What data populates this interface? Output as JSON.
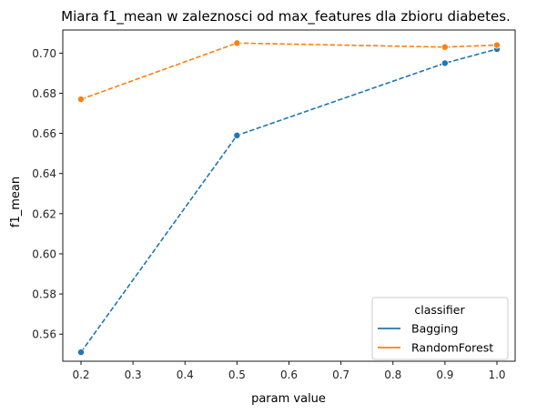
{
  "chart_data": {
    "type": "line",
    "title": "Miara f1_mean w zaleznosci od max_features dla zbioru diabetes.",
    "xlabel": "param value",
    "ylabel": "f1_mean",
    "x": [
      0.2,
      0.5,
      0.9,
      1.0
    ],
    "xlim": [
      0.165,
      1.035
    ],
    "ylim": [
      0.5465,
      0.7115
    ],
    "xticks": [
      0.2,
      0.3,
      0.4,
      0.5,
      0.6,
      0.7,
      0.8,
      0.9,
      1.0
    ],
    "xtick_labels": [
      "0.2",
      "0.3",
      "0.4",
      "0.5",
      "0.6",
      "0.7",
      "0.8",
      "0.9",
      "1.0"
    ],
    "yticks": [
      0.56,
      0.58,
      0.6,
      0.62,
      0.64,
      0.66,
      0.68,
      0.7
    ],
    "ytick_labels": [
      "0.56",
      "0.58",
      "0.60",
      "0.62",
      "0.64",
      "0.66",
      "0.68",
      "0.70"
    ],
    "grid": false,
    "line_style": "dashed",
    "marker": "circle",
    "legend": {
      "title": "classifier",
      "placement": "lower-right"
    },
    "series": [
      {
        "name": "Bagging",
        "color": "#1f77b4",
        "values": [
          0.551,
          0.659,
          0.695,
          0.702
        ]
      },
      {
        "name": "RandomForest",
        "color": "#ff7f0e",
        "values": [
          0.677,
          0.705,
          0.703,
          0.704
        ]
      }
    ]
  }
}
